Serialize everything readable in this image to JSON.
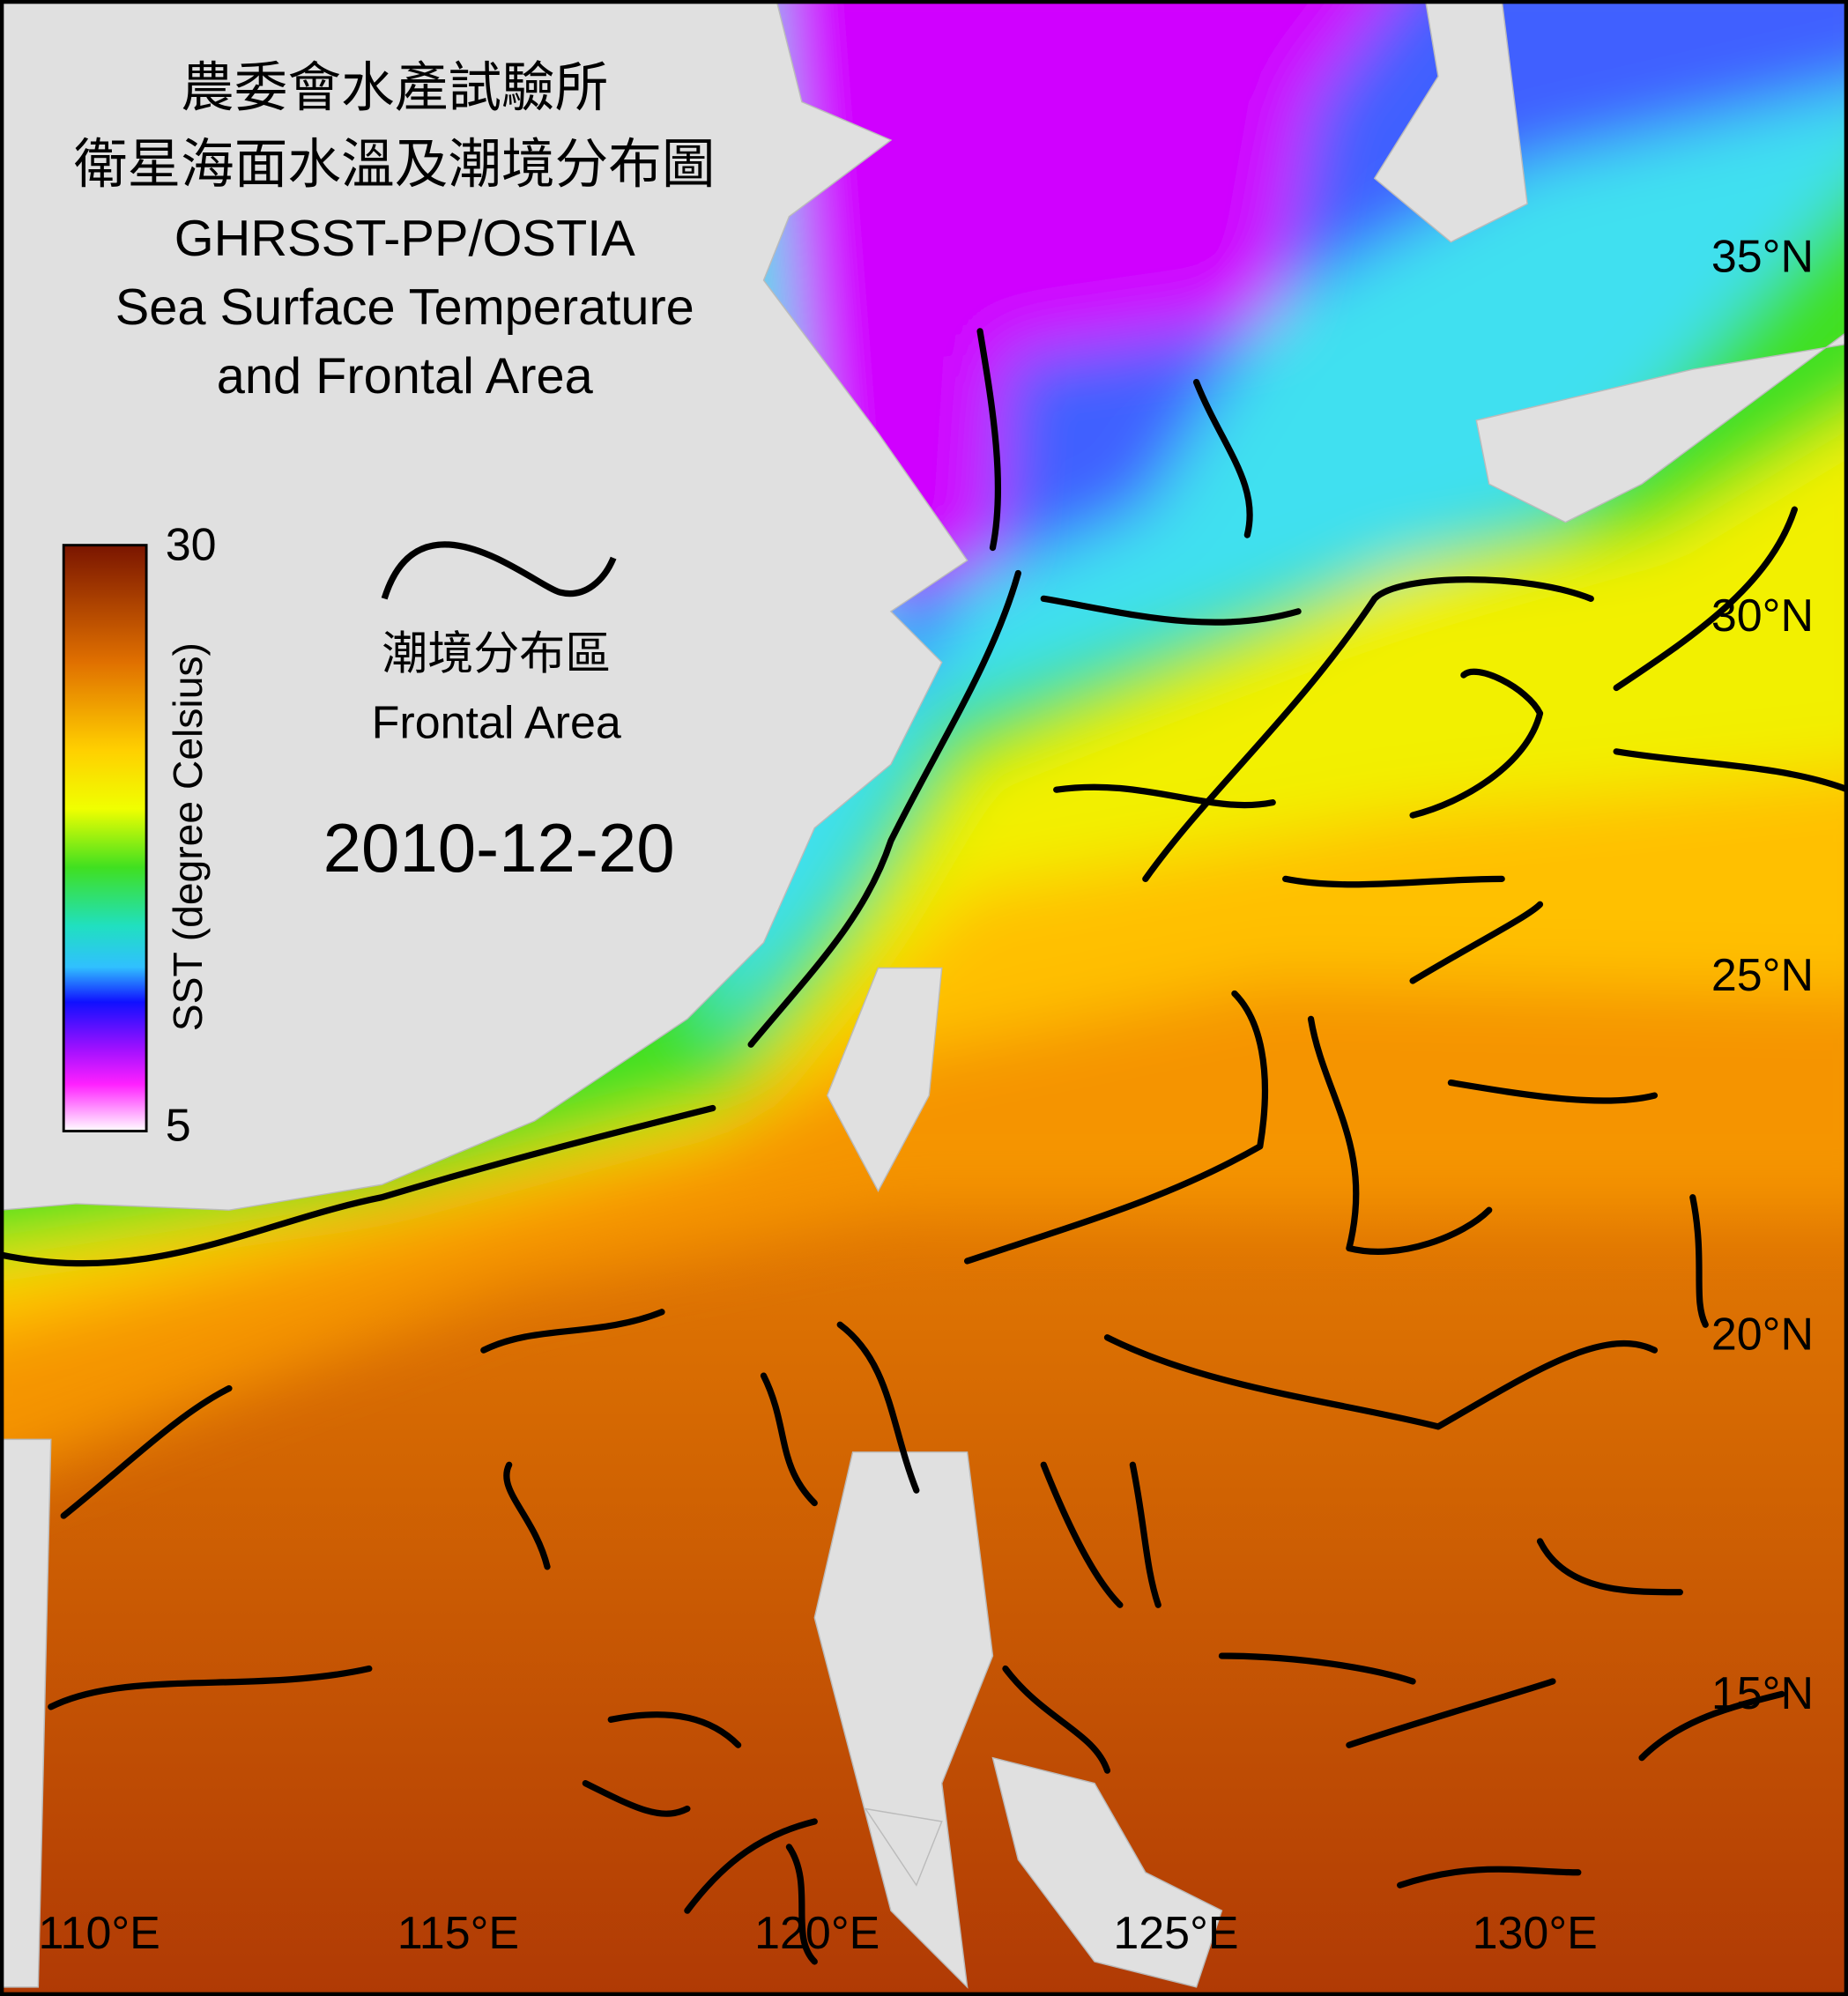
{
  "title": {
    "line1": "農委會水產試驗所",
    "line2": "衛星海面水溫及潮境分布圖",
    "line3": "GHRSST-PP/OSTIA",
    "line4": "Sea Surface Temperature",
    "line5": "and Frontal Area"
  },
  "colorbar": {
    "max": 30,
    "min": 5,
    "label": "SST (degree Celsius)"
  },
  "front_legend": {
    "zh": "潮境分布區",
    "en": "Frontal Area"
  },
  "date": "2010-12-20",
  "lat_labels": [
    "35°N",
    "30°N",
    "25°N",
    "20°N",
    "15°N"
  ],
  "lon_labels": [
    "110°E",
    "115°E",
    "120°E",
    "125°E",
    "130°E"
  ]
}
